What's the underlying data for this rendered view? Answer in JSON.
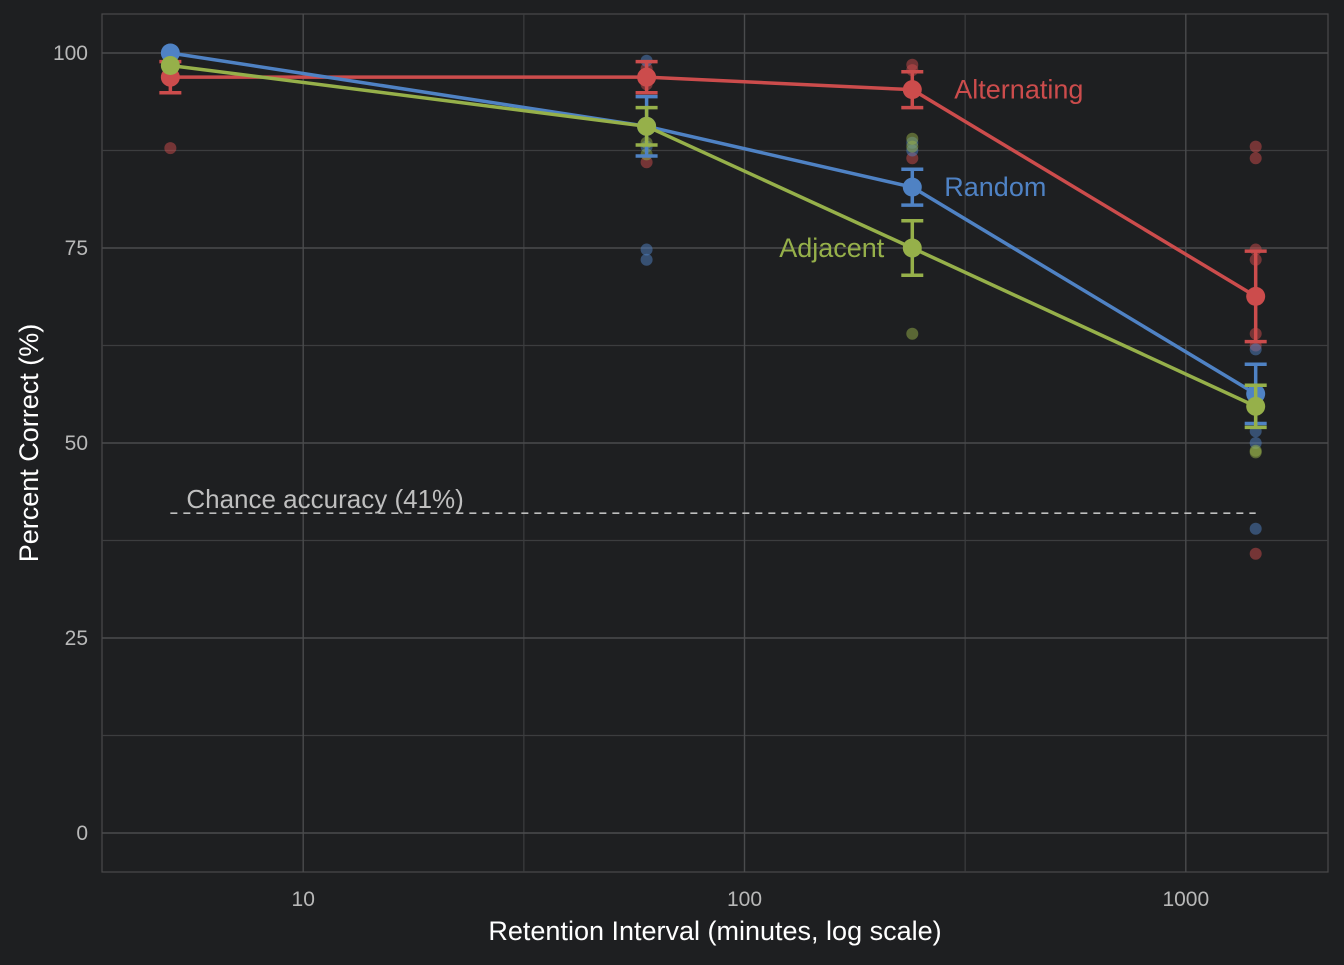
{
  "chart_data": {
    "type": "line",
    "title": "",
    "xlabel": "Retention Interval (minutes, log scale)",
    "ylabel": "Percent Correct (%)",
    "x_scale": "log",
    "xlim": [
      3.5,
      2100
    ],
    "ylim": [
      -5,
      105
    ],
    "x_ticks": [
      10,
      100,
      1000
    ],
    "x_tick_labels": [
      "10",
      "100",
      "1000"
    ],
    "y_ticks": [
      0,
      25,
      50,
      75,
      100
    ],
    "y_tick_labels": [
      "0",
      "25",
      "50",
      "75",
      "100"
    ],
    "grid": true,
    "legend": "none (direct labels)",
    "reference_line": {
      "y": 41,
      "label": "Chance accuracy (41%)",
      "x_range": [
        5,
        1440
      ],
      "color": "#bfbfbf"
    },
    "series": [
      {
        "name": "Alternating",
        "color": "#cc4c4c",
        "x": [
          5,
          60,
          240,
          1440
        ],
        "y": [
          96.9,
          96.9,
          95.3,
          68.8
        ],
        "err_low": [
          94.9,
          94.9,
          93.0,
          63.0
        ],
        "err_high": [
          98.9,
          98.9,
          97.6,
          74.6
        ],
        "individual": [
          [
            5,
            96.9
          ],
          [
            5,
            87.8
          ],
          [
            60,
            98.0
          ],
          [
            60,
            96.0
          ],
          [
            60,
            86.0
          ],
          [
            240,
            98.5
          ],
          [
            240,
            97.8
          ],
          [
            240,
            86.5
          ],
          [
            1440,
            88.0
          ],
          [
            1440,
            86.5
          ],
          [
            1440,
            74.8
          ],
          [
            1440,
            73.5
          ],
          [
            1440,
            64.0
          ],
          [
            1440,
            62.5
          ],
          [
            1440,
            35.8
          ]
        ]
      },
      {
        "name": "Random",
        "color": "#4f82c4",
        "x": [
          5,
          60,
          240,
          1440
        ],
        "y": [
          100,
          90.6,
          82.8,
          56.3
        ],
        "err_low": [
          100,
          86.8,
          80.5,
          52.5
        ],
        "err_high": [
          100,
          94.4,
          85.1,
          60.1
        ],
        "individual": [
          [
            5,
            100
          ],
          [
            60,
            99.0
          ],
          [
            60,
            74.8
          ],
          [
            60,
            73.5
          ],
          [
            60,
            88.0
          ],
          [
            240,
            88.5
          ],
          [
            240,
            87.5
          ],
          [
            240,
            74.5
          ],
          [
            1440,
            62.0
          ],
          [
            1440,
            51.5
          ],
          [
            1440,
            50.0
          ],
          [
            1440,
            39.0
          ]
        ]
      },
      {
        "name": "Adjacent",
        "color": "#96b04a",
        "x": [
          5,
          60,
          240,
          1440
        ],
        "y": [
          98.4,
          90.6,
          75.0,
          54.7
        ],
        "err_low": [
          98.4,
          88.2,
          71.5,
          52.0
        ],
        "err_high": [
          98.4,
          93.0,
          78.5,
          57.4
        ],
        "individual": [
          [
            5,
            98.0
          ],
          [
            60,
            88.5
          ],
          [
            60,
            87.0
          ],
          [
            240,
            89.0
          ],
          [
            240,
            88.0
          ],
          [
            240,
            64.0
          ],
          [
            1440,
            55.0
          ],
          [
            1440,
            49.0
          ],
          [
            1440,
            48.8
          ]
        ]
      }
    ]
  }
}
